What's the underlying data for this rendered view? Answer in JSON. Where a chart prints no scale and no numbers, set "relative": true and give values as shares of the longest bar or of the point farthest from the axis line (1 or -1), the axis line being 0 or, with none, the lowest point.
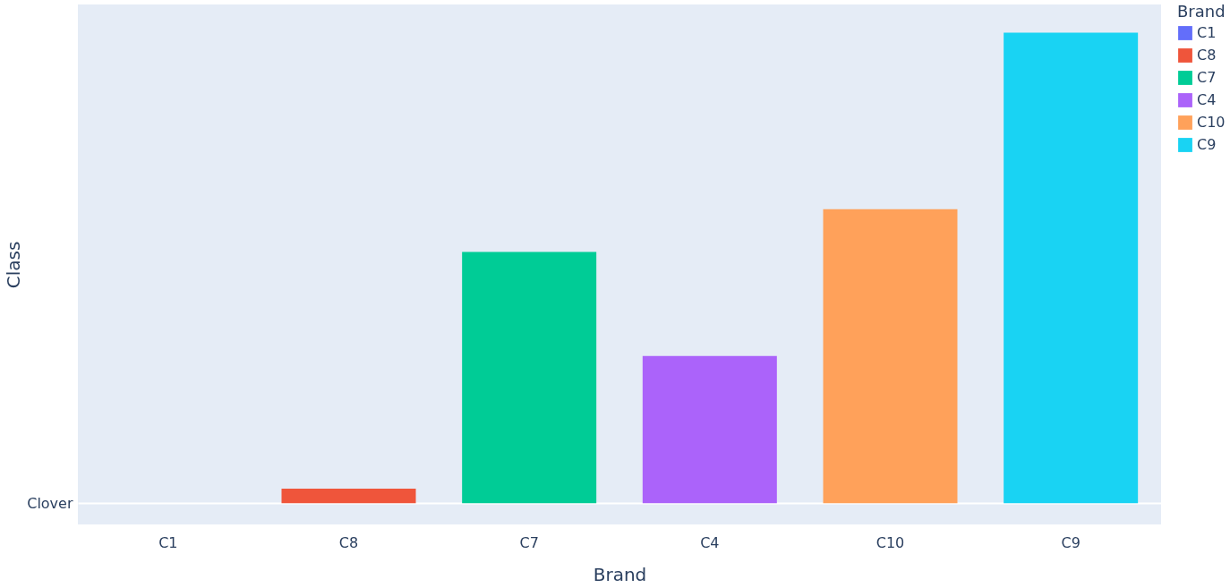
{
  "chart_data": {
    "type": "bar",
    "xlabel": "Brand",
    "ylabel": "Class",
    "legend_title": "Brand",
    "legend": "top right",
    "relative": true,
    "categories": [
      "C1",
      "C8",
      "C7",
      "C4",
      "C10",
      "C9"
    ],
    "series": [
      {
        "name": "C1",
        "color": "#636efa",
        "values": [
          0,
          null,
          null,
          null,
          null,
          null
        ]
      },
      {
        "name": "C8",
        "color": "#ef553b",
        "values": [
          null,
          0.031,
          null,
          null,
          null,
          null
        ]
      },
      {
        "name": "C7",
        "color": "#00cc96",
        "values": [
          null,
          null,
          0.534,
          null,
          null,
          null
        ]
      },
      {
        "name": "C4",
        "color": "#ab63fa",
        "values": [
          null,
          null,
          null,
          0.313,
          null,
          null
        ]
      },
      {
        "name": "C10",
        "color": "#ffa15a",
        "values": [
          null,
          null,
          null,
          null,
          0.625,
          null
        ]
      },
      {
        "name": "C9",
        "color": "#19d3f3",
        "values": [
          null,
          null,
          null,
          null,
          null,
          1
        ]
      }
    ],
    "annotations": [
      "Clover"
    ]
  }
}
